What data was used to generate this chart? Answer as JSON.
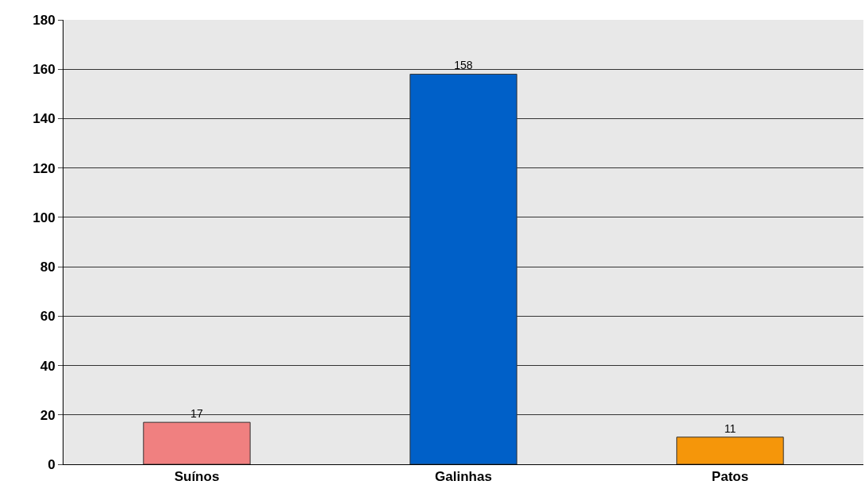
{
  "chart_data": {
    "type": "bar",
    "categories": [
      "Suínos",
      "Galinhas",
      "Patos"
    ],
    "values": [
      17,
      158,
      11
    ],
    "colors": [
      "#f08080",
      "#0060c8",
      "#f5960a"
    ],
    "ylim": [
      0,
      180
    ],
    "yticks": [
      0,
      20,
      40,
      60,
      80,
      100,
      120,
      140,
      160,
      180
    ],
    "grid": "y",
    "data_labels": true
  }
}
